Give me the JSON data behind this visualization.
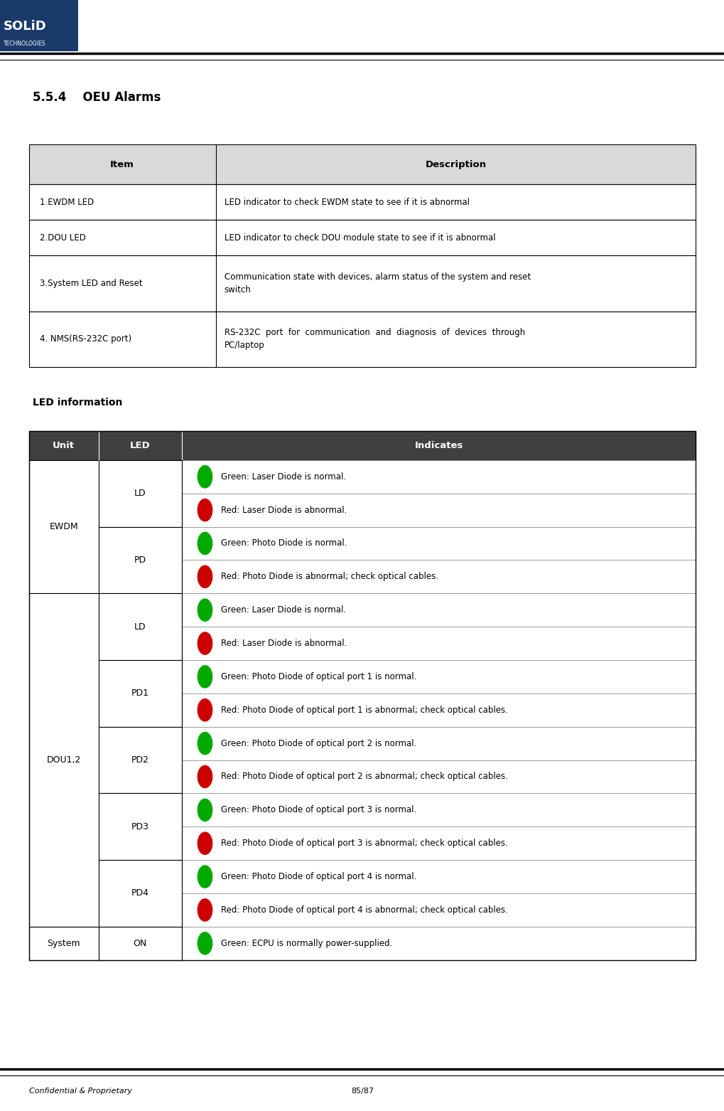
{
  "page_width": 10.2,
  "page_height": 15.62,
  "dpi": 100,
  "bg_color": "#ffffff",
  "header_bar_color": "#1a3a6b",
  "header_bar_height": 0.72,
  "header_bar_width": 1.1,
  "section_title": "5.5.4    OEU Alarms",
  "table1_header_bg": "#d9d9d9",
  "table1_rows": [
    [
      "1.EWDM LED",
      "LED indicator to check EWDM state to see if it is abnormal"
    ],
    [
      "2.DOU LED",
      "LED indicator to check DOU module state to see if it is abnormal"
    ],
    [
      "3.System LED and Reset",
      "Communication state with devices, alarm status of the system and reset\nswitch"
    ],
    [
      "4. NMS(RS-232C port)",
      "RS-232C  port  for  communication  and  diagnosis  of  devices  through\nPC/laptop"
    ]
  ],
  "led_section_title": "LED information",
  "table2_header_bg": "#404040",
  "led_rows": [
    {
      "unit": "EWDM",
      "led": "LD",
      "entries": [
        {
          "color": "#00aa00",
          "text": "Green: Laser Diode is normal."
        },
        {
          "color": "#cc0000",
          "text": "Red: Laser Diode is abnormal."
        }
      ]
    },
    {
      "unit": "",
      "led": "PD",
      "entries": [
        {
          "color": "#00aa00",
          "text": "Green: Photo Diode is normal."
        },
        {
          "color": "#cc0000",
          "text": "Red: Photo Diode is abnormal; check optical cables."
        }
      ]
    },
    {
      "unit": "DOU1,2",
      "led": "LD",
      "entries": [
        {
          "color": "#00aa00",
          "text": "Green: Laser Diode is normal."
        },
        {
          "color": "#cc0000",
          "text": "Red: Laser Diode is abnormal."
        }
      ]
    },
    {
      "unit": "",
      "led": "PD1",
      "entries": [
        {
          "color": "#00aa00",
          "text": "Green: Photo Diode of optical port 1 is normal."
        },
        {
          "color": "#cc0000",
          "text": "Red: Photo Diode of optical port 1 is abnormal; check optical cables."
        }
      ]
    },
    {
      "unit": "",
      "led": "PD2",
      "entries": [
        {
          "color": "#00aa00",
          "text": "Green: Photo Diode of optical port 2 is normal."
        },
        {
          "color": "#cc0000",
          "text": "Red: Photo Diode of optical port 2 is abnormal; check optical cables."
        }
      ]
    },
    {
      "unit": "",
      "led": "PD3",
      "entries": [
        {
          "color": "#00aa00",
          "text": "Green: Photo Diode of optical port 3 is normal."
        },
        {
          "color": "#cc0000",
          "text": "Red: Photo Diode of optical port 3 is abnormal; check optical cables."
        }
      ]
    },
    {
      "unit": "",
      "led": "PD4",
      "entries": [
        {
          "color": "#00aa00",
          "text": "Green: Photo Diode of optical port 4 is normal."
        },
        {
          "color": "#cc0000",
          "text": "Red: Photo Diode of optical port 4 is abnormal; check optical cables."
        }
      ]
    },
    {
      "unit": "System",
      "led": "ON",
      "entries": [
        {
          "color": "#00aa00",
          "text": "Green: ECPU is normally power-supplied."
        }
      ]
    }
  ],
  "footer_text_left": "Confidential & Proprietary",
  "footer_text_right": "85/87"
}
